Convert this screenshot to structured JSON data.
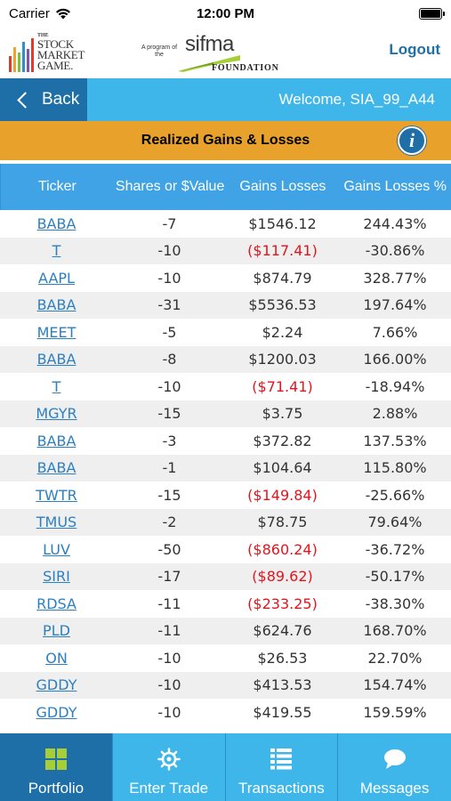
{
  "status_bar": {
    "carrier": "Carrier",
    "time": "12:00 PM"
  },
  "header": {
    "smg_logo": {
      "the": "THE",
      "line1": "STOCK",
      "line2": "MARKET",
      "line3": "GAME."
    },
    "sifma_logo": {
      "program_text": "A program of the",
      "word": "sifma",
      "foundation": "FOUNDATION"
    },
    "logout_label": "Logout"
  },
  "navbar": {
    "back_label": "Back",
    "welcome_text": "Welcome, SIA_99_A44"
  },
  "titlebar": {
    "title": "Realized Gains & Losses",
    "info_glyph": "i"
  },
  "table": {
    "headers": [
      "Ticker",
      "Shares or $Value",
      "Gains Losses",
      "Gains Losses %"
    ],
    "rows": [
      {
        "ticker": "BABA",
        "shares": "-7",
        "gain": "$1546.12",
        "pct": "244.43%",
        "negative": false
      },
      {
        "ticker": "T",
        "shares": "-10",
        "gain": "($117.41)",
        "pct": "-30.86%",
        "negative": true
      },
      {
        "ticker": "AAPL",
        "shares": "-10",
        "gain": "$874.79",
        "pct": "328.77%",
        "negative": false
      },
      {
        "ticker": "BABA",
        "shares": "-31",
        "gain": "$5536.53",
        "pct": "197.64%",
        "negative": false
      },
      {
        "ticker": "MEET",
        "shares": "-5",
        "gain": "$2.24",
        "pct": "7.66%",
        "negative": false
      },
      {
        "ticker": "BABA",
        "shares": "-8",
        "gain": "$1200.03",
        "pct": "166.00%",
        "negative": false
      },
      {
        "ticker": "T",
        "shares": "-10",
        "gain": "($71.41)",
        "pct": "-18.94%",
        "negative": true
      },
      {
        "ticker": "MGYR",
        "shares": "-15",
        "gain": "$3.75",
        "pct": "2.88%",
        "negative": false
      },
      {
        "ticker": "BABA",
        "shares": "-3",
        "gain": "$372.82",
        "pct": "137.53%",
        "negative": false
      },
      {
        "ticker": "BABA",
        "shares": "-1",
        "gain": "$104.64",
        "pct": "115.80%",
        "negative": false
      },
      {
        "ticker": "TWTR",
        "shares": "-15",
        "gain": "($149.84)",
        "pct": "-25.66%",
        "negative": true
      },
      {
        "ticker": "TMUS",
        "shares": "-2",
        "gain": "$78.75",
        "pct": "79.64%",
        "negative": false
      },
      {
        "ticker": "LUV",
        "shares": "-50",
        "gain": "($860.24)",
        "pct": "-36.72%",
        "negative": true
      },
      {
        "ticker": "SIRI",
        "shares": "-17",
        "gain": "($89.62)",
        "pct": "-50.17%",
        "negative": true
      },
      {
        "ticker": "RDSA",
        "shares": "-11",
        "gain": "($233.25)",
        "pct": "-38.30%",
        "negative": true
      },
      {
        "ticker": "PLD",
        "shares": "-11",
        "gain": "$624.76",
        "pct": "168.70%",
        "negative": false
      },
      {
        "ticker": "ON",
        "shares": "-10",
        "gain": "$26.53",
        "pct": "22.70%",
        "negative": false
      },
      {
        "ticker": "GDDY",
        "shares": "-10",
        "gain": "$413.53",
        "pct": "154.74%",
        "negative": false
      },
      {
        "ticker": "GDDY",
        "shares": "-10",
        "gain": "$419.55",
        "pct": "159.59%",
        "negative": false
      }
    ]
  },
  "tabbar": {
    "tabs": [
      {
        "label": "Portfolio",
        "icon": "grid-icon",
        "active": true
      },
      {
        "label": "Enter Trade",
        "icon": "ship-wheel-icon",
        "active": false
      },
      {
        "label": "Transactions",
        "icon": "list-icon",
        "active": false
      },
      {
        "label": "Messages",
        "icon": "chat-bubble-icon",
        "active": false
      }
    ]
  },
  "colors": {
    "nav_blue": "#3fb6e9",
    "dark_blue": "#1e6ea8",
    "title_orange": "#e8a22b",
    "header_blue": "#3fa3e5",
    "link_blue": "#2c7fc1",
    "negative_red": "#e3141c",
    "portfolio_icon_green": "#a6ce39"
  }
}
